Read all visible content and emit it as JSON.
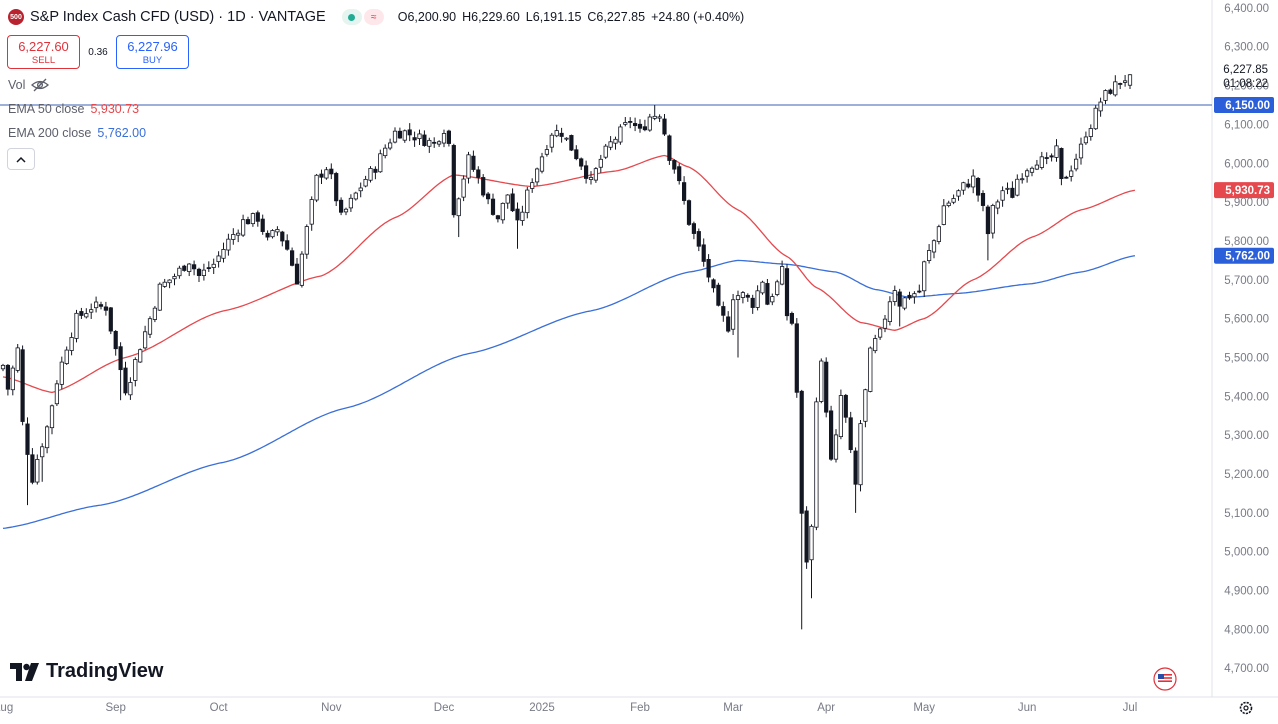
{
  "header": {
    "symbol_badge": "500",
    "title": "S&P Index Cash CFD (USD) · 1D · VANTAGE",
    "open": "O6,200.90",
    "high": "H6,229.60",
    "low": "L6,191.15",
    "close": "C6,227.85",
    "change": "+24.80 (+0.40%)"
  },
  "trade": {
    "sell_price": "6,227.60",
    "sell_label": "SELL",
    "spread": "0.36",
    "buy_price": "6,227.96",
    "buy_label": "BUY"
  },
  "legend": {
    "vol_label": "Vol",
    "ema50_label": "EMA 50 close",
    "ema50_value": "5,930.73",
    "ema200_label": "EMA 200 close",
    "ema200_value": "5,762.00"
  },
  "brand": {
    "name": "TradingView"
  },
  "colors": {
    "ema50": "#e5484d",
    "ema200": "#3a6fd8",
    "hline": "#3a62b5",
    "candle": "#131722",
    "axis_text": "#787b86",
    "sell": "#e0323b",
    "buy": "#2962ff"
  },
  "chart_data": {
    "type": "candlestick",
    "symbol": "S&P Index Cash CFD (USD)",
    "interval": "1D",
    "ylim": [
      4680,
      6410
    ],
    "y_ticks": [
      "4,700.00",
      "4,800.00",
      "4,900.00",
      "5,000.00",
      "5,100.00",
      "5,200.00",
      "5,300.00",
      "5,400.00",
      "5,500.00",
      "5,600.00",
      "5,700.00",
      "5,800.00",
      "5,900.00",
      "6,000.00",
      "6,100.00",
      "6,200.00",
      "6,300.00",
      "6,400.00"
    ],
    "x_ticks": [
      "Aug",
      "Sep",
      "Oct",
      "Nov",
      "Dec",
      "2025",
      "Feb",
      "Mar",
      "Apr",
      "May",
      "Jun",
      "Jul"
    ],
    "x_tick_days": [
      0,
      23,
      44,
      67,
      90,
      110,
      130,
      149,
      168,
      188,
      209,
      230
    ],
    "last_close": 6227.85,
    "last_label": "6,227.85",
    "countdown": "01:08:22",
    "horizontal_line": {
      "value": 6150,
      "label": "6,150.00"
    },
    "ema50_badge": {
      "value": 5930.73,
      "label": "5,930.73"
    },
    "ema200_badge": {
      "value": 5762.0,
      "label": "5,762.00"
    },
    "anchors": [
      [
        0,
        5480
      ],
      [
        1,
        5420
      ],
      [
        3,
        5520
      ],
      [
        4,
        5330
      ],
      [
        6,
        5190
      ],
      [
        7,
        5240
      ],
      [
        9,
        5320
      ],
      [
        11,
        5440
      ],
      [
        13,
        5530
      ],
      [
        15,
        5600
      ],
      [
        18,
        5630
      ],
      [
        21,
        5630
      ],
      [
        23,
        5520
      ],
      [
        25,
        5420
      ],
      [
        26,
        5450
      ],
      [
        28,
        5530
      ],
      [
        30,
        5600
      ],
      [
        32,
        5680
      ],
      [
        35,
        5710
      ],
      [
        38,
        5750
      ],
      [
        40,
        5710
      ],
      [
        43,
        5740
      ],
      [
        44,
        5760
      ],
      [
        46,
        5800
      ],
      [
        49,
        5850
      ],
      [
        52,
        5860
      ],
      [
        54,
        5800
      ],
      [
        56,
        5830
      ],
      [
        58,
        5780
      ],
      [
        60,
        5700
      ],
      [
        62,
        5830
      ],
      [
        64,
        5960
      ],
      [
        66,
        5990
      ],
      [
        67,
        5960
      ],
      [
        69,
        5860
      ],
      [
        70,
        5880
      ],
      [
        72,
        5920
      ],
      [
        74,
        5960
      ],
      [
        76,
        5990
      ],
      [
        78,
        6040
      ],
      [
        80,
        6080
      ],
      [
        82,
        6080
      ],
      [
        84,
        6070
      ],
      [
        86,
        6060
      ],
      [
        88,
        6050
      ],
      [
        90,
        6090
      ],
      [
        91,
        6050
      ],
      [
        92,
        5880
      ],
      [
        93,
        5920
      ],
      [
        95,
        6010
      ],
      [
        97,
        5960
      ],
      [
        99,
        5900
      ],
      [
        101,
        5860
      ],
      [
        103,
        5920
      ],
      [
        105,
        5840
      ],
      [
        106,
        5880
      ],
      [
        108,
        5960
      ],
      [
        110,
        6020
      ],
      [
        112,
        6080
      ],
      [
        114,
        6080
      ],
      [
        116,
        6040
      ],
      [
        118,
        6000
      ],
      [
        120,
        5950
      ],
      [
        122,
        6010
      ],
      [
        124,
        6050
      ],
      [
        126,
        6080
      ],
      [
        128,
        6110
      ],
      [
        130,
        6080
      ],
      [
        132,
        6120
      ],
      [
        134,
        6130
      ],
      [
        135,
        6080
      ],
      [
        136,
        6020
      ],
      [
        137,
        5990
      ],
      [
        139,
        5900
      ],
      [
        140,
        5850
      ],
      [
        142,
        5780
      ],
      [
        144,
        5710
      ],
      [
        146,
        5620
      ],
      [
        148,
        5580
      ],
      [
        149,
        5660
      ],
      [
        151,
        5660
      ],
      [
        153,
        5640
      ],
      [
        155,
        5700
      ],
      [
        156,
        5640
      ],
      [
        158,
        5690
      ],
      [
        159,
        5720
      ],
      [
        160,
        5610
      ],
      [
        161,
        5590
      ],
      [
        162,
        5410
      ],
      [
        163,
        5090
      ],
      [
        164,
        4980
      ],
      [
        165,
        5060
      ],
      [
        166,
        5400
      ],
      [
        167,
        5480
      ],
      [
        168,
        5370
      ],
      [
        169,
        5230
      ],
      [
        170,
        5290
      ],
      [
        171,
        5400
      ],
      [
        172,
        5340
      ],
      [
        173,
        5250
      ],
      [
        174,
        5170
      ],
      [
        175,
        5330
      ],
      [
        176,
        5410
      ],
      [
        177,
        5510
      ],
      [
        178,
        5540
      ],
      [
        179,
        5560
      ],
      [
        181,
        5650
      ],
      [
        182,
        5680
      ],
      [
        183,
        5640
      ],
      [
        185,
        5660
      ],
      [
        187,
        5670
      ],
      [
        188,
        5740
      ],
      [
        190,
        5800
      ],
      [
        192,
        5890
      ],
      [
        194,
        5910
      ],
      [
        196,
        5940
      ],
      [
        198,
        5960
      ],
      [
        200,
        5880
      ],
      [
        201,
        5820
      ],
      [
        202,
        5880
      ],
      [
        204,
        5930
      ],
      [
        206,
        5920
      ],
      [
        207,
        5960
      ],
      [
        209,
        5990
      ],
      [
        211,
        6010
      ],
      [
        213,
        6000
      ],
      [
        215,
        6030
      ],
      [
        216,
        5950
      ],
      [
        218,
        5990
      ],
      [
        220,
        6040
      ],
      [
        221,
        6080
      ],
      [
        222,
        6100
      ],
      [
        224,
        6160
      ],
      [
        226,
        6190
      ],
      [
        228,
        6210
      ],
      [
        230,
        6228
      ]
    ],
    "extreme_points": [
      {
        "day": 5,
        "low": 5120
      },
      {
        "day": 8,
        "low": 5180
      },
      {
        "day": 24,
        "low": 5390
      },
      {
        "day": 60,
        "low": 5700
      },
      {
        "day": 93,
        "low": 5810
      },
      {
        "day": 105,
        "low": 5780
      },
      {
        "day": 133,
        "high": 6150
      },
      {
        "day": 150,
        "low": 5500
      },
      {
        "day": 163,
        "low": 4800
      },
      {
        "day": 165,
        "low": 4880
      },
      {
        "day": 174,
        "low": 5100
      },
      {
        "day": 183,
        "low": 5580
      },
      {
        "day": 201,
        "low": 5750
      }
    ],
    "ema50": [
      [
        0,
        5450
      ],
      [
        10,
        5410
      ],
      [
        25,
        5500
      ],
      [
        45,
        5620
      ],
      [
        65,
        5710
      ],
      [
        80,
        5860
      ],
      [
        92,
        5970
      ],
      [
        108,
        5940
      ],
      [
        125,
        5980
      ],
      [
        135,
        6020
      ],
      [
        140,
        5990
      ],
      [
        150,
        5880
      ],
      [
        160,
        5760
      ],
      [
        166,
        5680
      ],
      [
        175,
        5590
      ],
      [
        182,
        5570
      ],
      [
        188,
        5600
      ],
      [
        198,
        5700
      ],
      [
        210,
        5810
      ],
      [
        220,
        5880
      ],
      [
        231,
        5930.73
      ]
    ],
    "ema200": [
      [
        0,
        5060
      ],
      [
        20,
        5120
      ],
      [
        45,
        5230
      ],
      [
        70,
        5370
      ],
      [
        95,
        5510
      ],
      [
        120,
        5620
      ],
      [
        140,
        5720
      ],
      [
        150,
        5750
      ],
      [
        160,
        5740
      ],
      [
        170,
        5720
      ],
      [
        178,
        5675
      ],
      [
        185,
        5655
      ],
      [
        195,
        5665
      ],
      [
        210,
        5690
      ],
      [
        220,
        5720
      ],
      [
        231,
        5762
      ]
    ]
  }
}
